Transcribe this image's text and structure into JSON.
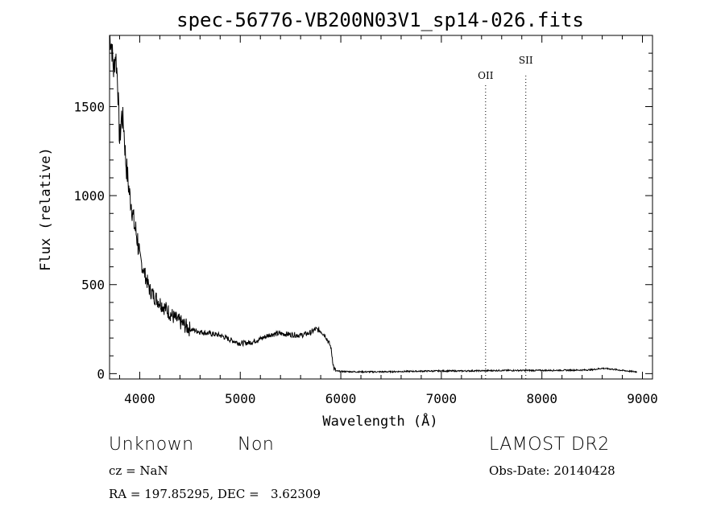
{
  "chart_data": {
    "type": "line",
    "title": "spec-56776-VB200N03V1_sp14-026.fits",
    "xlabel": "Wavelength (Å)",
    "ylabel": "Flux (relative)",
    "xlim": [
      3700,
      9100
    ],
    "ylim": [
      -30,
      1900
    ],
    "xticks": [
      4000,
      5000,
      6000,
      7000,
      8000,
      9000
    ],
    "yticks": [
      0,
      500,
      1000,
      1500
    ],
    "grid": false,
    "lines": [
      {
        "label": "OII",
        "x": 7440
      },
      {
        "label": "SII",
        "x": 7840
      }
    ],
    "series": [
      {
        "x": [
          3700,
          3720,
          3740,
          3760,
          3780,
          3800,
          3820,
          3840,
          3860,
          3880,
          3900,
          3920,
          3940,
          3960,
          3980,
          4000,
          4050,
          4100,
          4150,
          4200,
          4250,
          4300,
          4350,
          4400,
          4450,
          4500,
          4600,
          4700,
          4800,
          4900,
          5000,
          5100,
          5200,
          5300,
          5400,
          5500,
          5600,
          5700,
          5750,
          5800,
          5850,
          5900,
          5930,
          5950,
          6000,
          6200,
          6400,
          6600,
          6800,
          7000,
          7200,
          7400,
          7600,
          7800,
          8000,
          8200,
          8400,
          8500,
          8600,
          8700,
          8800,
          8900,
          8950
        ],
        "y": [
          1900,
          1850,
          1700,
          1800,
          1650,
          1300,
          1450,
          1400,
          1200,
          1100,
          1000,
          950,
          850,
          800,
          750,
          650,
          560,
          470,
          430,
          400,
          370,
          340,
          310,
          290,
          270,
          250,
          235,
          225,
          215,
          190,
          170,
          175,
          195,
          220,
          225,
          220,
          215,
          230,
          250,
          240,
          210,
          150,
          30,
          15,
          12,
          10,
          10,
          12,
          14,
          15,
          15,
          16,
          18,
          18,
          18,
          19,
          20,
          22,
          30,
          25,
          18,
          12,
          10
        ]
      }
    ]
  },
  "info": {
    "class": "Unknown",
    "subclass": "Non",
    "survey": "LAMOST DR2",
    "cz": "cz = NaN",
    "obs_date": "Obs-Date: 20140428",
    "coords": "RA = 197.85295, DEC =   3.62309"
  }
}
